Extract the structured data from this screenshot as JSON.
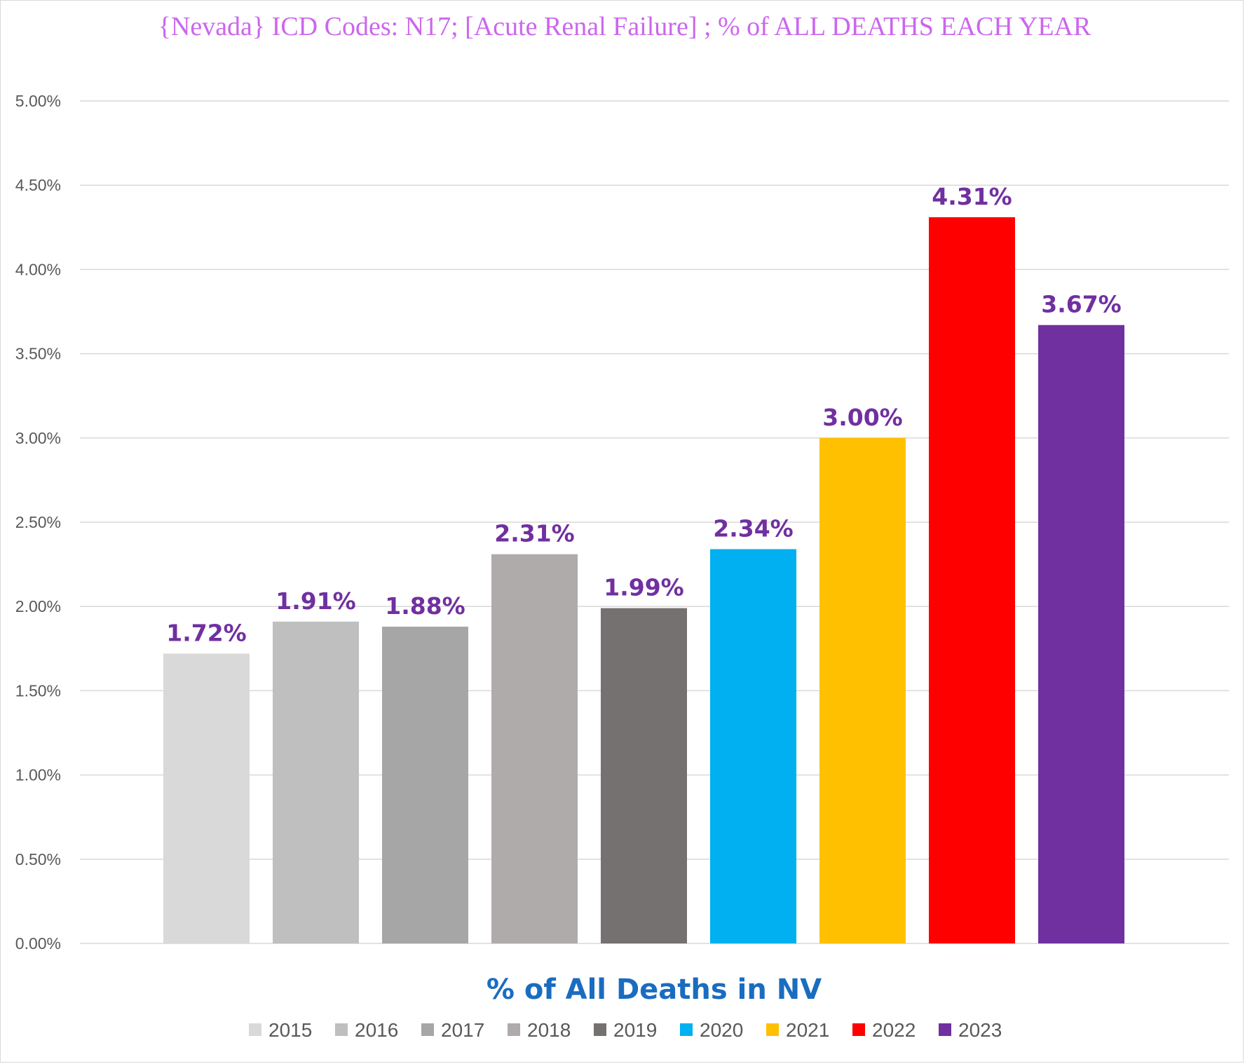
{
  "chart_data": {
    "type": "bar",
    "title": "{Nevada}   ICD Codes: N17;  [Acute Renal Failure] ; % of ALL DEATHS EACH YEAR",
    "xlabel": "% of All Deaths in NV",
    "ylabel": "",
    "ylim": [
      0,
      5
    ],
    "yticks": [
      "0.00%",
      "0.50%",
      "1.00%",
      "1.50%",
      "2.00%",
      "2.50%",
      "3.00%",
      "3.50%",
      "4.00%",
      "4.50%",
      "5.00%"
    ],
    "ytick_values": [
      0,
      0.5,
      1,
      1.5,
      2,
      2.5,
      3,
      3.5,
      4,
      4.5,
      5
    ],
    "grid": true,
    "legend_position": "bottom",
    "series": [
      {
        "name": "2015",
        "value": 1.72,
        "label": "1.72%",
        "color": "#d9d9d9"
      },
      {
        "name": "2016",
        "value": 1.91,
        "label": "1.91%",
        "color": "#bfbfbf"
      },
      {
        "name": "2017",
        "value": 1.88,
        "label": "1.88%",
        "color": "#a6a6a6"
      },
      {
        "name": "2018",
        "value": 2.31,
        "label": "2.31%",
        "color": "#afabab"
      },
      {
        "name": "2019",
        "value": 1.99,
        "label": "1.99%",
        "color": "#767171"
      },
      {
        "name": "2020",
        "value": 2.34,
        "label": "2.34%",
        "color": "#00b0f0"
      },
      {
        "name": "2021",
        "value": 3.0,
        "label": "3.00%",
        "color": "#ffc000"
      },
      {
        "name": "2022",
        "value": 4.31,
        "label": "4.31%",
        "color": "#ff0000"
      },
      {
        "name": "2023",
        "value": 3.67,
        "label": "3.67%",
        "color": "#7030a0"
      }
    ]
  }
}
